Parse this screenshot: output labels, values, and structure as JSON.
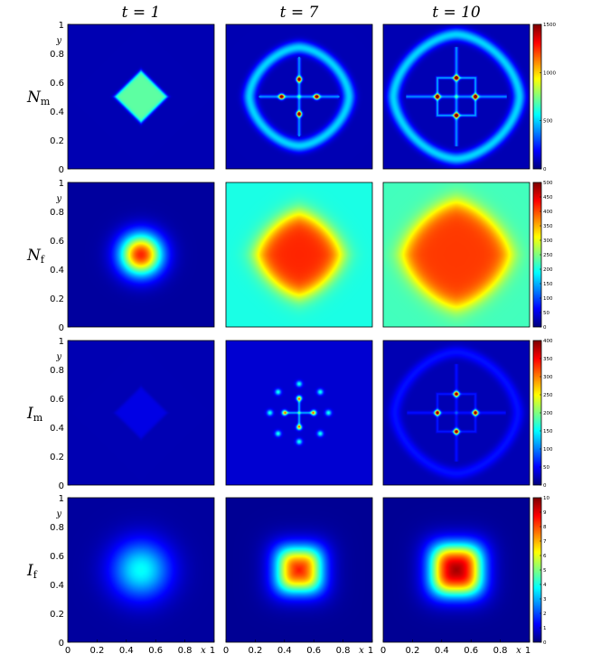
{
  "chart_data": {
    "type": "heatmap",
    "colormap": "jet",
    "columns": [
      {
        "time": 1,
        "label": "t = 1"
      },
      {
        "time": 7,
        "label": "t = 7"
      },
      {
        "time": 10,
        "label": "t = 10"
      }
    ],
    "rows": [
      {
        "name": "N",
        "sub": "m",
        "colorbar": {
          "min": 0,
          "max": 1500,
          "ticks": [
            0,
            500,
            1000,
            1500
          ]
        },
        "panels": [
          {
            "pattern": "diamond",
            "value": 700,
            "size": 0.18
          },
          {
            "pattern": "ring-cross",
            "value": 550,
            "peak": 1500,
            "size": 0.34,
            "cross": 0.12
          },
          {
            "pattern": "ring-cross",
            "value": 550,
            "peak": 1500,
            "size": 0.43,
            "cross": 0.13,
            "box": true
          }
        ]
      },
      {
        "name": "N",
        "sub": "f",
        "colorbar": {
          "min": 0,
          "max": 500,
          "ticks": [
            0,
            50,
            100,
            150,
            200,
            250,
            300,
            350,
            400,
            450,
            500
          ]
        },
        "panels": [
          {
            "pattern": "blob",
            "value": 420,
            "sigma": 0.1
          },
          {
            "pattern": "plateau",
            "value": 420,
            "size": 0.28,
            "floor": 200
          },
          {
            "pattern": "plateau",
            "value": 410,
            "size": 0.36,
            "floor": 220
          }
        ]
      },
      {
        "name": "I",
        "sub": "m",
        "colorbar": {
          "min": 0,
          "max": 400,
          "ticks": [
            0,
            50,
            100,
            150,
            200,
            250,
            300,
            350,
            400
          ]
        },
        "panels": [
          {
            "pattern": "diamond",
            "value": 40,
            "size": 0.18
          },
          {
            "pattern": "spots",
            "value": 180,
            "peak": 240,
            "size": 0.2,
            "cross": 0.1
          },
          {
            "pattern": "ring-cross",
            "value": 60,
            "peak": 400,
            "size": 0.42,
            "cross": 0.13,
            "box": true
          }
        ]
      },
      {
        "name": "I",
        "sub": "f",
        "colorbar": {
          "min": 0,
          "max": 10,
          "ticks": [
            0,
            1,
            2,
            3,
            4,
            5,
            6,
            7,
            8,
            9,
            10
          ]
        },
        "panels": [
          {
            "pattern": "blob",
            "value": 3.8,
            "sigma": 0.14
          },
          {
            "pattern": "square",
            "value": 9.0,
            "size": 0.13
          },
          {
            "pattern": "square",
            "value": 10,
            "size": 0.15
          }
        ]
      }
    ],
    "xlabel": "x",
    "ylabel": "y",
    "xlim": [
      0,
      1
    ],
    "ylim": [
      0,
      1
    ],
    "xticks": [
      "0",
      "0.2",
      "0.4",
      "0.6",
      "0.8",
      "1"
    ],
    "yticks": [
      "0",
      "0.2",
      "0.4",
      "0.6",
      "0.8",
      "1"
    ]
  }
}
